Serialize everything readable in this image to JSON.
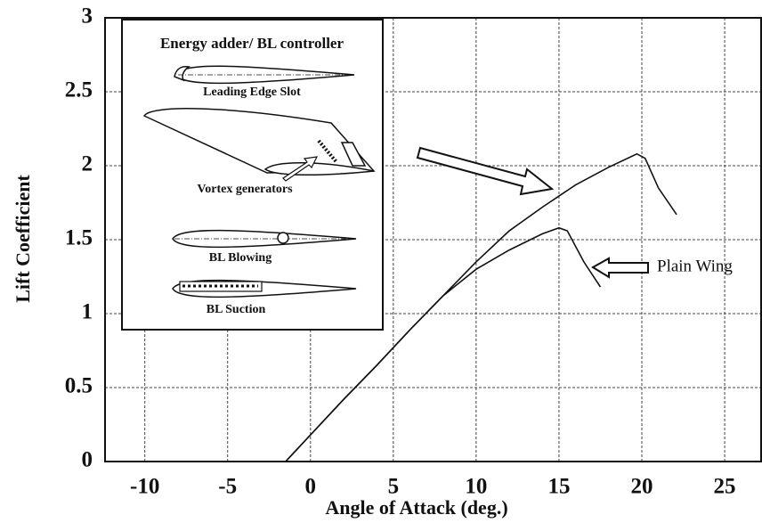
{
  "chart_data": {
    "type": "line",
    "xlabel": "Angle of Attack (deg.)",
    "ylabel": "Lift Coefficient",
    "xlim": [
      -12.4,
      27.2
    ],
    "ylim": [
      0,
      3
    ],
    "xticks": [
      -10,
      -5,
      0,
      5,
      10,
      15,
      20,
      25
    ],
    "yticks": [
      0,
      0.5,
      1,
      1.5,
      2,
      2.5,
      3
    ],
    "grid": true,
    "series": [
      {
        "name": "Plain Wing",
        "color": "#111111",
        "x": [
          -1.5,
          0,
          2,
          4,
          6,
          8,
          10,
          12,
          14,
          15,
          15.5,
          16.5,
          17.5
        ],
        "values": [
          0,
          0.18,
          0.42,
          0.65,
          0.89,
          1.12,
          1.3,
          1.43,
          1.54,
          1.58,
          1.56,
          1.35,
          1.18
        ]
      },
      {
        "color": "#111111",
        "x": [
          -1.5,
          0,
          2,
          4,
          6,
          8,
          10,
          12,
          14,
          16,
          18,
          19.7,
          20.2,
          21,
          22.1
        ],
        "values": [
          0,
          0.18,
          0.42,
          0.65,
          0.89,
          1.12,
          1.35,
          1.56,
          1.72,
          1.87,
          1.99,
          2.08,
          2.05,
          1.85,
          1.67
        ]
      }
    ],
    "annotations": [
      "Energy adder/ BL controller",
      "Leading Edge Slot",
      "Vortex generators",
      "BL Blowing",
      "BL Suction"
    ]
  }
}
